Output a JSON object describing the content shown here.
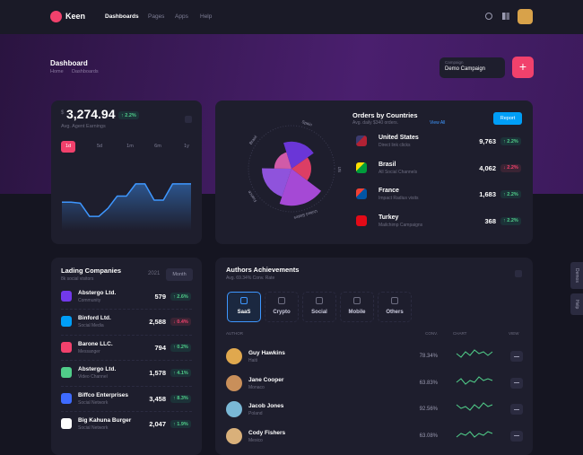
{
  "header": {
    "brand": "Keen",
    "nav": [
      "Dashboards",
      "Pages",
      "Apps",
      "Help"
    ]
  },
  "toolbar": {
    "title": "Dashboard",
    "breadcrumb": [
      "Home",
      "Dashboards"
    ],
    "select_label": "Campaign",
    "select_value": "Demo Campaign"
  },
  "earnings": {
    "currency": "$",
    "amount": "3,274.94",
    "change": "2.2%",
    "subtitle": "Avg. Agent Earnings",
    "tabs": [
      "1d",
      "5d",
      "1m",
      "6m",
      "1y"
    ],
    "chart": {
      "type": "line",
      "color": "#3e97ff",
      "values": [
        28,
        28,
        27,
        14,
        14,
        22,
        34,
        34,
        46,
        46,
        30,
        30,
        46,
        46,
        46
      ]
    }
  },
  "orders": {
    "title": "Orders by Countries",
    "subtitle": "Avg. daily $340 orders.",
    "link": "View All",
    "button": "Report",
    "polar": {
      "type": "polar",
      "labels": [
        "Spain",
        "US",
        "United States",
        "France",
        "Brasil"
      ],
      "values": [
        55,
        40,
        75,
        60,
        35
      ],
      "colors": [
        "#7239ea",
        "#f1416c",
        "#b44ee8",
        "#9b59f0",
        "#e462b6"
      ]
    },
    "rows": [
      {
        "name": "United States",
        "sub": "Direct link clicks",
        "value": "9,763",
        "change": "2.2%",
        "dir": "up"
      },
      {
        "name": "Brasil",
        "sub": "All Social Channels",
        "value": "4,062",
        "change": "2.2%",
        "dir": "down"
      },
      {
        "name": "France",
        "sub": "Impact Radius visits",
        "value": "1,683",
        "change": "2.2%",
        "dir": "up"
      },
      {
        "name": "Turkey",
        "sub": "Mailchimp Campaigns",
        "value": "368",
        "change": "2.2%",
        "dir": "up"
      }
    ]
  },
  "companies": {
    "title": "Lading Companies",
    "subtitle": "8k social visitors",
    "year": "2021",
    "button": "Month",
    "rows": [
      {
        "name": "Abstergo Ltd.",
        "sub": "Community",
        "value": "579",
        "change": "2.6%",
        "dir": "up"
      },
      {
        "name": "Binford Ltd.",
        "sub": "Social Media",
        "value": "2,588",
        "change": "0.4%",
        "dir": "down"
      },
      {
        "name": "Barone LLC.",
        "sub": "Messanger",
        "value": "794",
        "change": "0.2%",
        "dir": "up"
      },
      {
        "name": "Abstergo Ltd.",
        "sub": "Video Channel",
        "value": "1,578",
        "change": "4.1%",
        "dir": "up"
      },
      {
        "name": "Biffco Enterprises",
        "sub": "Social Network",
        "value": "3,458",
        "change": "8.3%",
        "dir": "up"
      },
      {
        "name": "Big Kahuna Burger",
        "sub": "Social Network",
        "value": "2,047",
        "change": "1.9%",
        "dir": "up"
      }
    ]
  },
  "authors": {
    "title": "Authors Achievements",
    "subtitle": "Avg. 69.34% Conv. Rate",
    "tabs": [
      "SaaS",
      "Crypto",
      "Social",
      "Mobile",
      "Others"
    ],
    "columns": [
      "AUTHOR",
      "CONV.",
      "CHART",
      "VIEW"
    ],
    "rows": [
      {
        "name": "Guy Hawkins",
        "sub": "Haiti",
        "conv": "78.34%",
        "chart": [
          5,
          3,
          6,
          4,
          7,
          5,
          6,
          4,
          6
        ]
      },
      {
        "name": "Jane Cooper",
        "sub": "Monaco",
        "conv": "63.83%",
        "chart": [
          4,
          6,
          3,
          5,
          4,
          7,
          5,
          6,
          5
        ]
      },
      {
        "name": "Jacob Jones",
        "sub": "Poland",
        "conv": "92.56%",
        "chart": [
          6,
          4,
          5,
          3,
          6,
          4,
          7,
          5,
          6
        ]
      },
      {
        "name": "Cody Fishers",
        "sub": "Mexico",
        "conv": "63.08%",
        "chart": [
          3,
          5,
          4,
          6,
          3,
          5,
          4,
          6,
          5
        ]
      }
    ]
  },
  "side": [
    "Demos",
    "Help"
  ]
}
